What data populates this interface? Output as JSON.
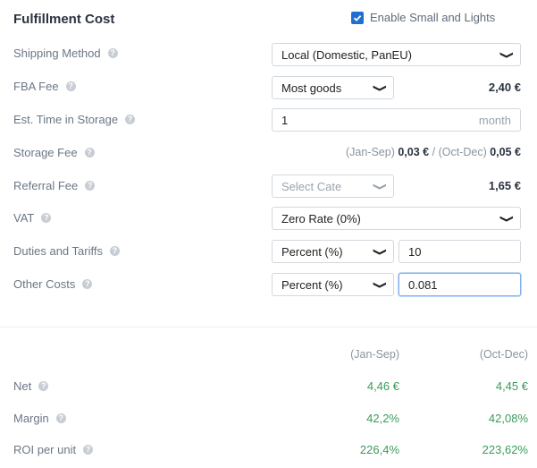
{
  "header": {
    "title": "Fulfillment Cost",
    "enable_label": "Enable Small and Lights",
    "enable_checked": true
  },
  "rows": {
    "shipping_method": {
      "label": "Shipping Method",
      "value": "Local (Domestic, PanEU)"
    },
    "fba_fee": {
      "label": "FBA Fee",
      "value": "Most goods",
      "amount": "2,40 €"
    },
    "est_time": {
      "label": "Est. Time in Storage",
      "value": "1",
      "unit": "month"
    },
    "storage_fee": {
      "label": "Storage Fee",
      "p1": "(Jan-Sep)",
      "v1": "0,03 €",
      "sep": "/",
      "p2": "(Oct-Dec)",
      "v2": "0,05 €"
    },
    "referral_fee": {
      "label": "Referral Fee",
      "value": "Select Cate",
      "amount": "1,65 €"
    },
    "vat": {
      "label": "VAT",
      "value": "Zero Rate (0%)"
    },
    "duties": {
      "label": "Duties and Tariffs",
      "value": "Percent (%)",
      "amount": "10"
    },
    "other_costs": {
      "label": "Other Costs",
      "value": "Percent (%)",
      "amount": "0.081"
    }
  },
  "summary": {
    "col1": "(Jan-Sep)",
    "col2": "(Oct-Dec)",
    "net": {
      "label": "Net",
      "v1": "4,46 €",
      "v2": "4,45 €"
    },
    "margin": {
      "label": "Margin",
      "v1": "42,2%",
      "v2": "42,08%"
    },
    "roi": {
      "label": "ROI per unit",
      "v1": "226,4%",
      "v2": "223,62%"
    }
  },
  "colors": {
    "accent": "#1f6fd1",
    "positive": "#3a9b5b",
    "text_dark": "#2b3340",
    "text_muted": "#6b7785"
  },
  "icons": {
    "help": "question-circle-icon",
    "dropdown": "chevron-down-icon",
    "checkbox": "checkbox-checked-icon"
  }
}
